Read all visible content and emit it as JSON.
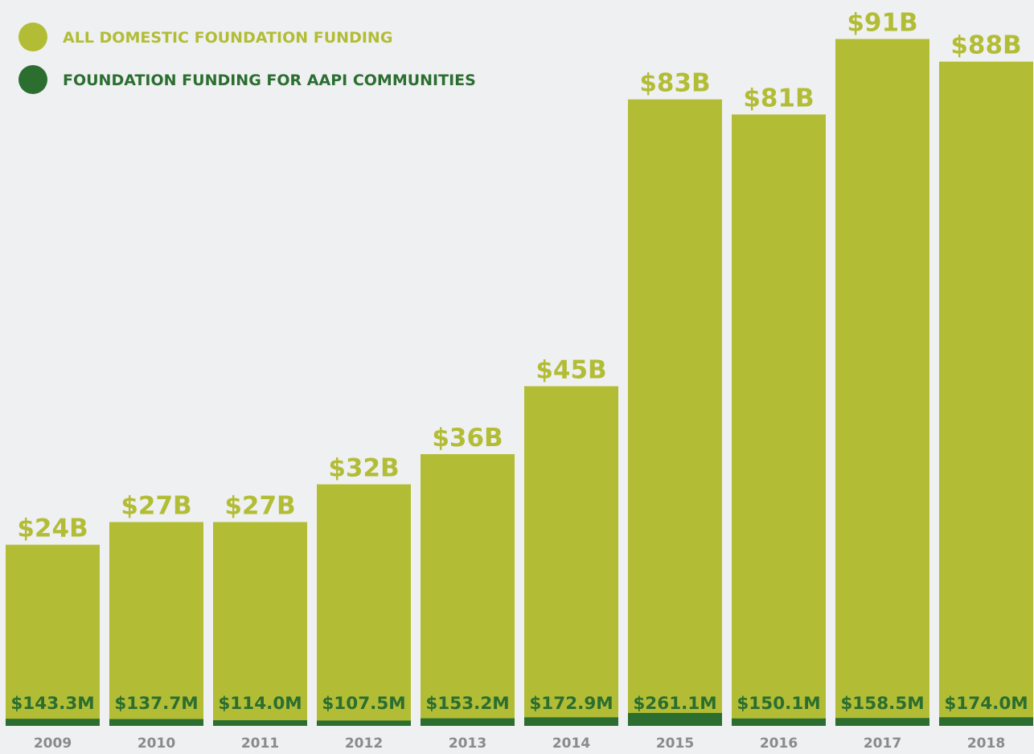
{
  "chart_data": {
    "type": "bar",
    "categories": [
      "2009",
      "2010",
      "2011",
      "2012",
      "2013",
      "2014",
      "2015",
      "2016",
      "2017",
      "2018"
    ],
    "series": [
      {
        "name": "ALL DOMESTIC FOUNDATION FUNDING",
        "unit": "billions USD",
        "color": "#b2bd35",
        "values": [
          24,
          27,
          27,
          32,
          36,
          45,
          83,
          81,
          91,
          88
        ],
        "labels": [
          "$24B",
          "$27B",
          "$27B",
          "$32B",
          "$36B",
          "$45B",
          "$83B",
          "$81B",
          "$91B",
          "$88B"
        ]
      },
      {
        "name": "FOUNDATION FUNDING FOR AAPI COMMUNITIES",
        "unit": "millions USD",
        "color": "#2b6e30",
        "values": [
          143.3,
          137.7,
          114.0,
          107.5,
          153.2,
          172.9,
          261.1,
          150.1,
          158.5,
          174.0
        ],
        "labels": [
          "$143.3M",
          "$137.7M",
          "$114.0M",
          "$107.5M",
          "$153.2M",
          "$172.9M",
          "$261.1M",
          "$150.1M",
          "$158.5M",
          "$174.0M"
        ]
      }
    ],
    "legend_position": "top-left",
    "tick_label_color": "#8a8a8a",
    "grid": false
  }
}
